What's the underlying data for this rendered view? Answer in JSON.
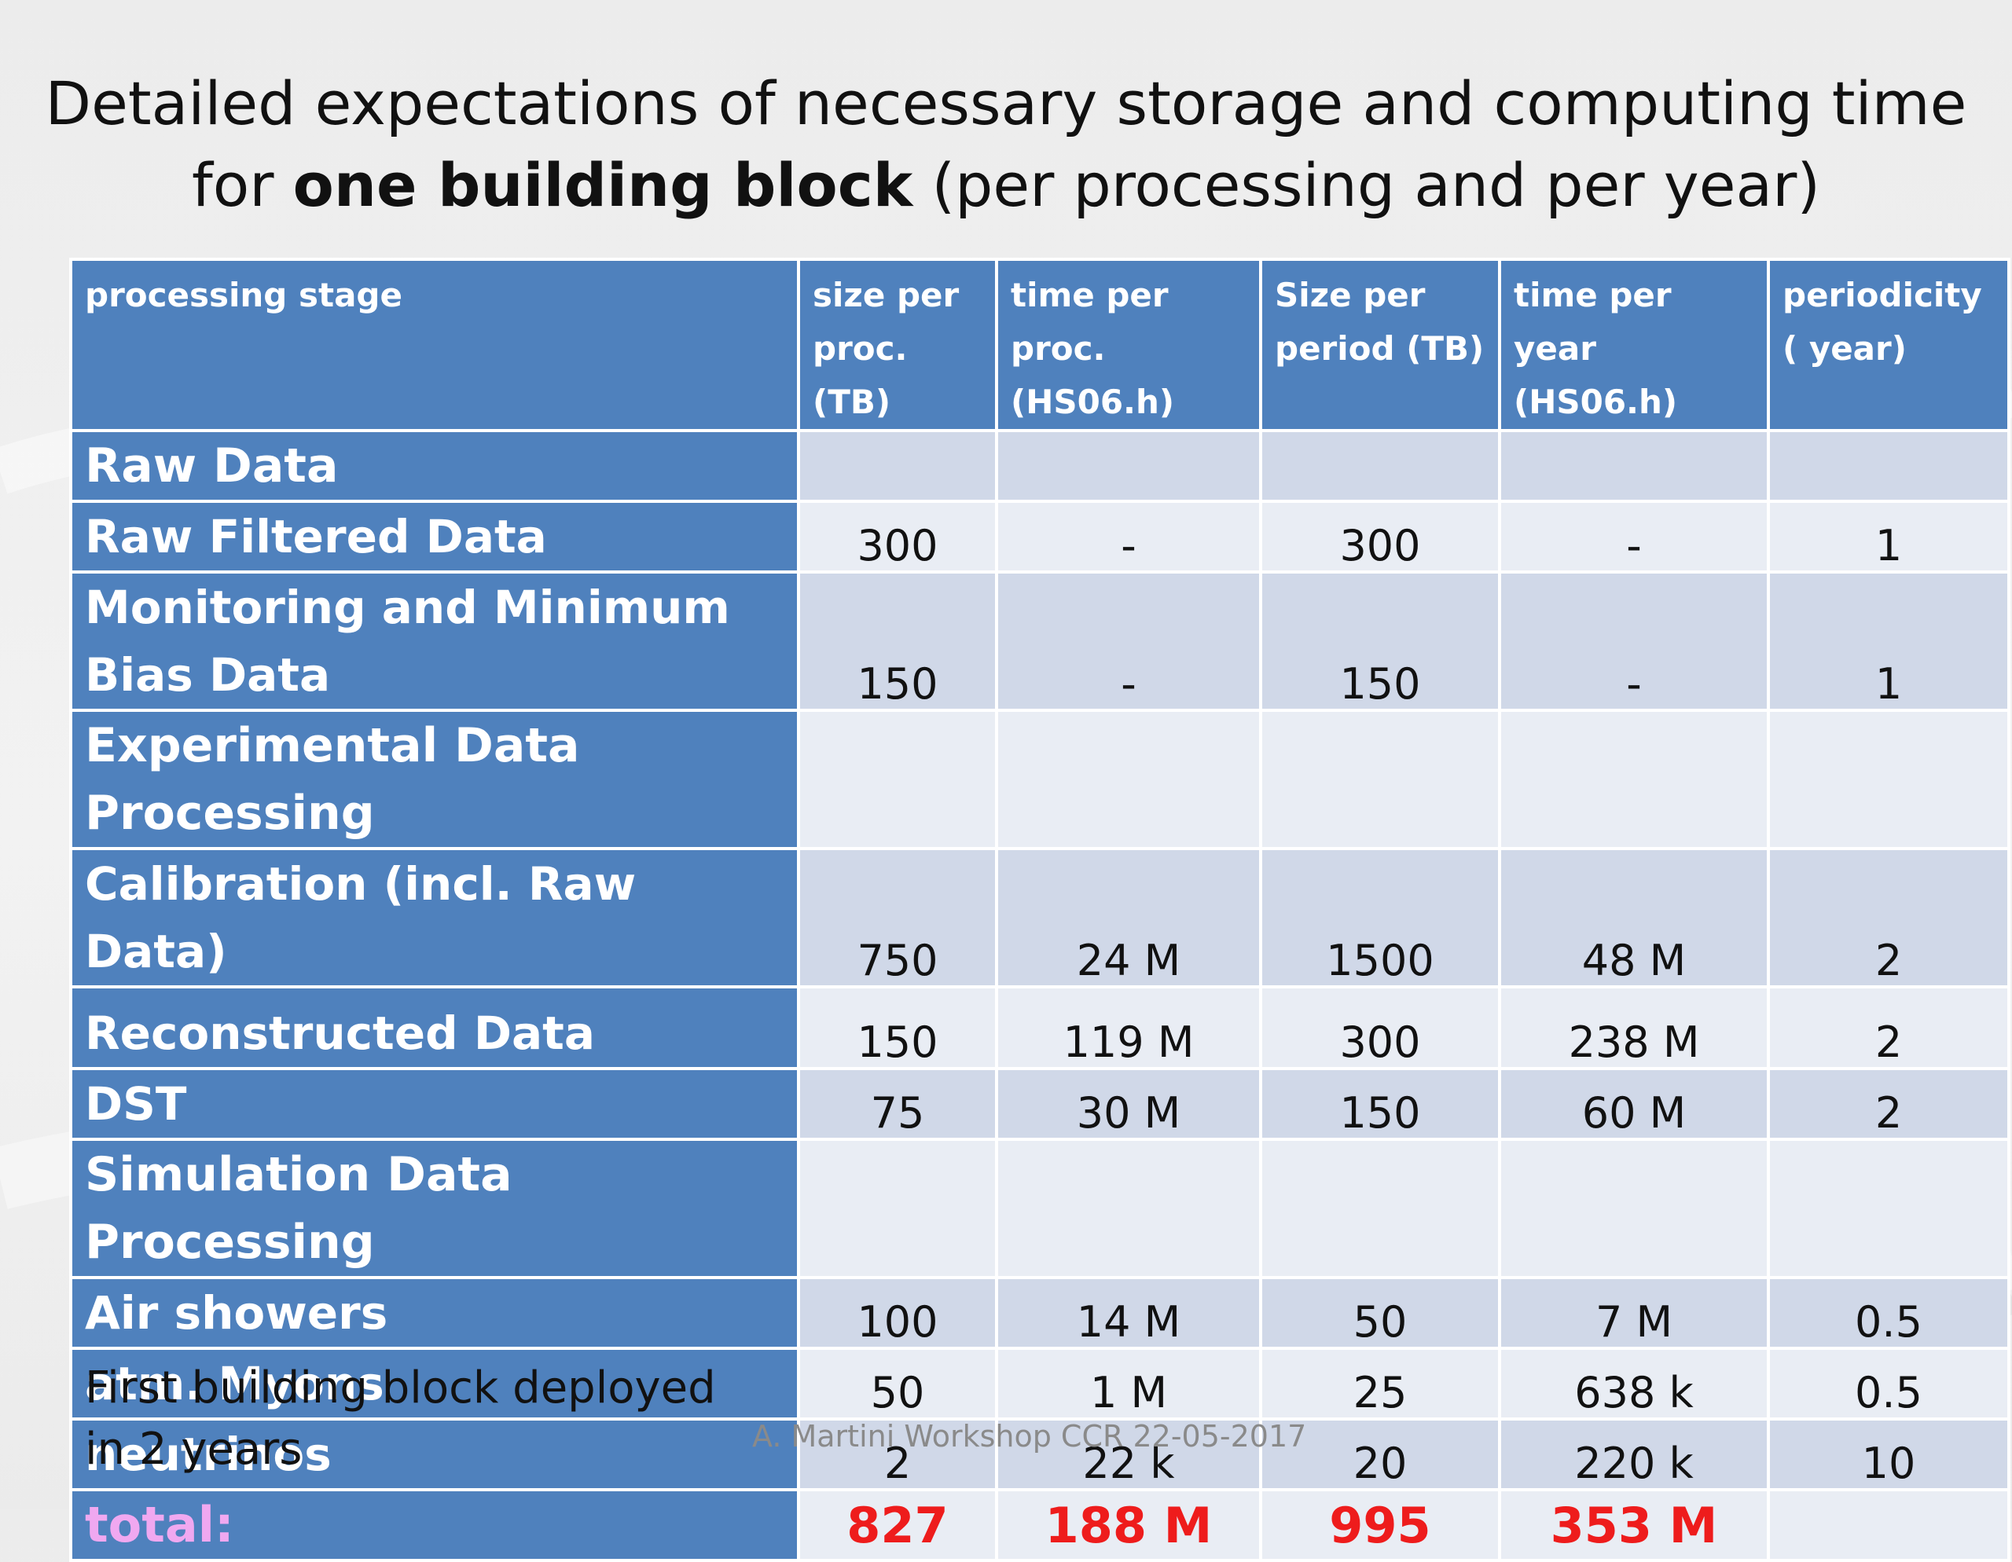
{
  "title": {
    "line1": "Detailed expectations of necessary storage and computing time",
    "line2_prefix": "for ",
    "line2_bold": "one building block",
    "line2_suffix": " (per processing and per year)"
  },
  "table": {
    "headers": [
      "processing stage",
      "size per proc. (TB)",
      "time per proc. (HS06.h)",
      "Size per period (TB)",
      "time per year (HS06.h)",
      "periodicity ( year)"
    ],
    "rows": [
      {
        "label": "Raw Data",
        "cells": [
          "",
          "",
          "",
          "",
          ""
        ]
      },
      {
        "label": "Raw Filtered Data",
        "cells": [
          "300",
          "-",
          "300",
          "-",
          "1"
        ]
      },
      {
        "label": "Monitoring and Minimum Bias Data",
        "cells": [
          "150",
          "-",
          "150",
          "-",
          "1"
        ]
      },
      {
        "label": "Experimental Data Processing",
        "cells": [
          "",
          "",
          "",
          "",
          ""
        ]
      },
      {
        "label": "Calibration (incl. Raw Data)",
        "cells": [
          "750",
          "24 M",
          "1500",
          "48 M",
          "2"
        ]
      },
      {
        "label": "Reconstructed Data",
        "cells": [
          "150",
          "119 M",
          "300",
          "238 M",
          "2"
        ]
      },
      {
        "label": "DST",
        "cells": [
          "75",
          "30 M",
          "150",
          "60 M",
          "2"
        ]
      },
      {
        "label": "Simulation Data Processing",
        "cells": [
          "",
          "",
          "",
          "",
          ""
        ]
      },
      {
        "label": "Air showers",
        "cells": [
          "100",
          "14 M",
          "50",
          "7 M",
          "0.5"
        ]
      },
      {
        "label": "atm. Myons",
        "cells": [
          "50",
          "1 M",
          "25",
          "638 k",
          "0.5"
        ]
      },
      {
        "label": "neutrinos",
        "cells": [
          "2",
          "22 k",
          "20",
          "220 k",
          "10"
        ]
      }
    ],
    "total": {
      "label": "total:",
      "cells": [
        "827",
        "188 M",
        "995",
        "353 M",
        ""
      ]
    }
  },
  "note": {
    "line1": "First building block deployed",
    "line2": "in 2 years"
  },
  "footer": "A. Martini Workshop CCR 22-05-2017",
  "colors": {
    "header_blue": "#4f81bd",
    "row_dark": "#d0d8e8",
    "row_light": "#e9edf4",
    "total_red": "#ee1c1c",
    "total_label_pink": "#f0a8f0"
  }
}
